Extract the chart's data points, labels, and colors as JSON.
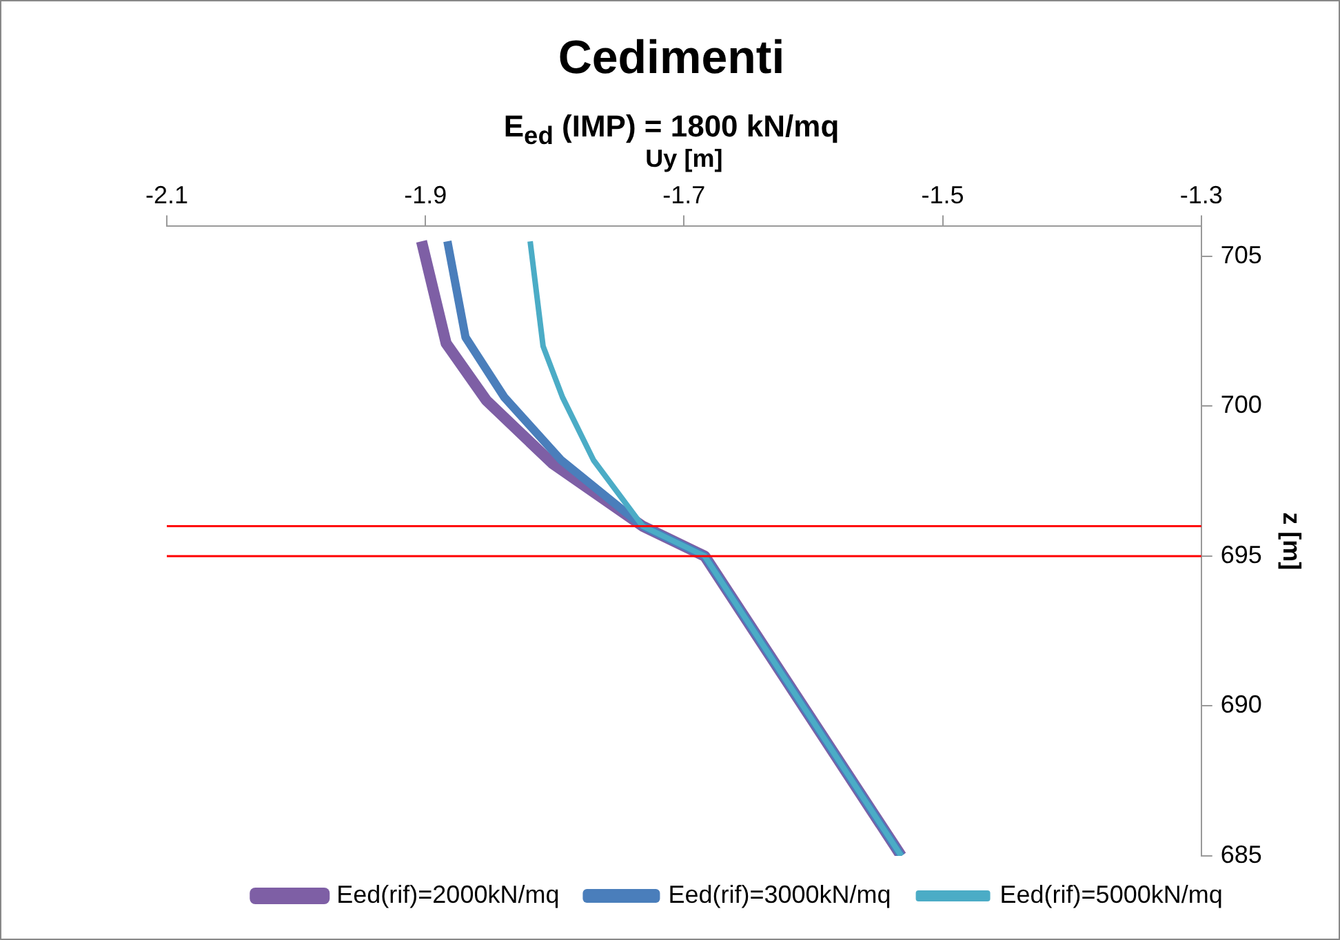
{
  "chart_data": {
    "type": "line",
    "title": "Cedimenti",
    "subtitle": "E$_{ed}$ (IMP) = 1800 kN/mq",
    "xlabel": "Uy [m]",
    "ylabel": "z [m]",
    "xlim": [
      -2.1,
      -1.3
    ],
    "xticks": [
      -2.1,
      -1.9,
      -1.7,
      -1.5,
      -1.3
    ],
    "ylim": [
      685,
      706
    ],
    "yticks": [
      685,
      690,
      695,
      700,
      705
    ],
    "grid": false,
    "legend": "bottom",
    "marker": "none",
    "line_style": "solid",
    "ref_lines": [
      {
        "axis": "y",
        "value": 696,
        "color": "#ff0000"
      },
      {
        "axis": "y",
        "value": 695,
        "color": "#ff0000"
      }
    ],
    "series": [
      {
        "name": "Eed(rif)=2000kN/mq",
        "color": "#7e5fa5",
        "x": [
          -1.903,
          -1.884,
          -1.853,
          -1.802,
          -1.732,
          -1.684,
          -1.532
        ],
        "values": [
          705.5,
          702.1,
          700.2,
          698.1,
          696,
          695,
          685
        ]
      },
      {
        "name": "Eed(rif)=3000kN/mq",
        "color": "#4a7ebb",
        "x": [
          -1.883,
          -1.869,
          -1.839,
          -1.795,
          -1.732,
          -1.684,
          -1.532
        ],
        "values": [
          705.5,
          702.3,
          700.3,
          698.2,
          696,
          695,
          685
        ]
      },
      {
        "name": "Eed(rif)=5000kN/mq",
        "color": "#4bacc6",
        "x": [
          -1.819,
          -1.809,
          -1.794,
          -1.77,
          -1.732,
          -1.684,
          -1.532
        ],
        "values": [
          705.5,
          702,
          700.3,
          698.2,
          696,
          695,
          685
        ]
      }
    ]
  }
}
